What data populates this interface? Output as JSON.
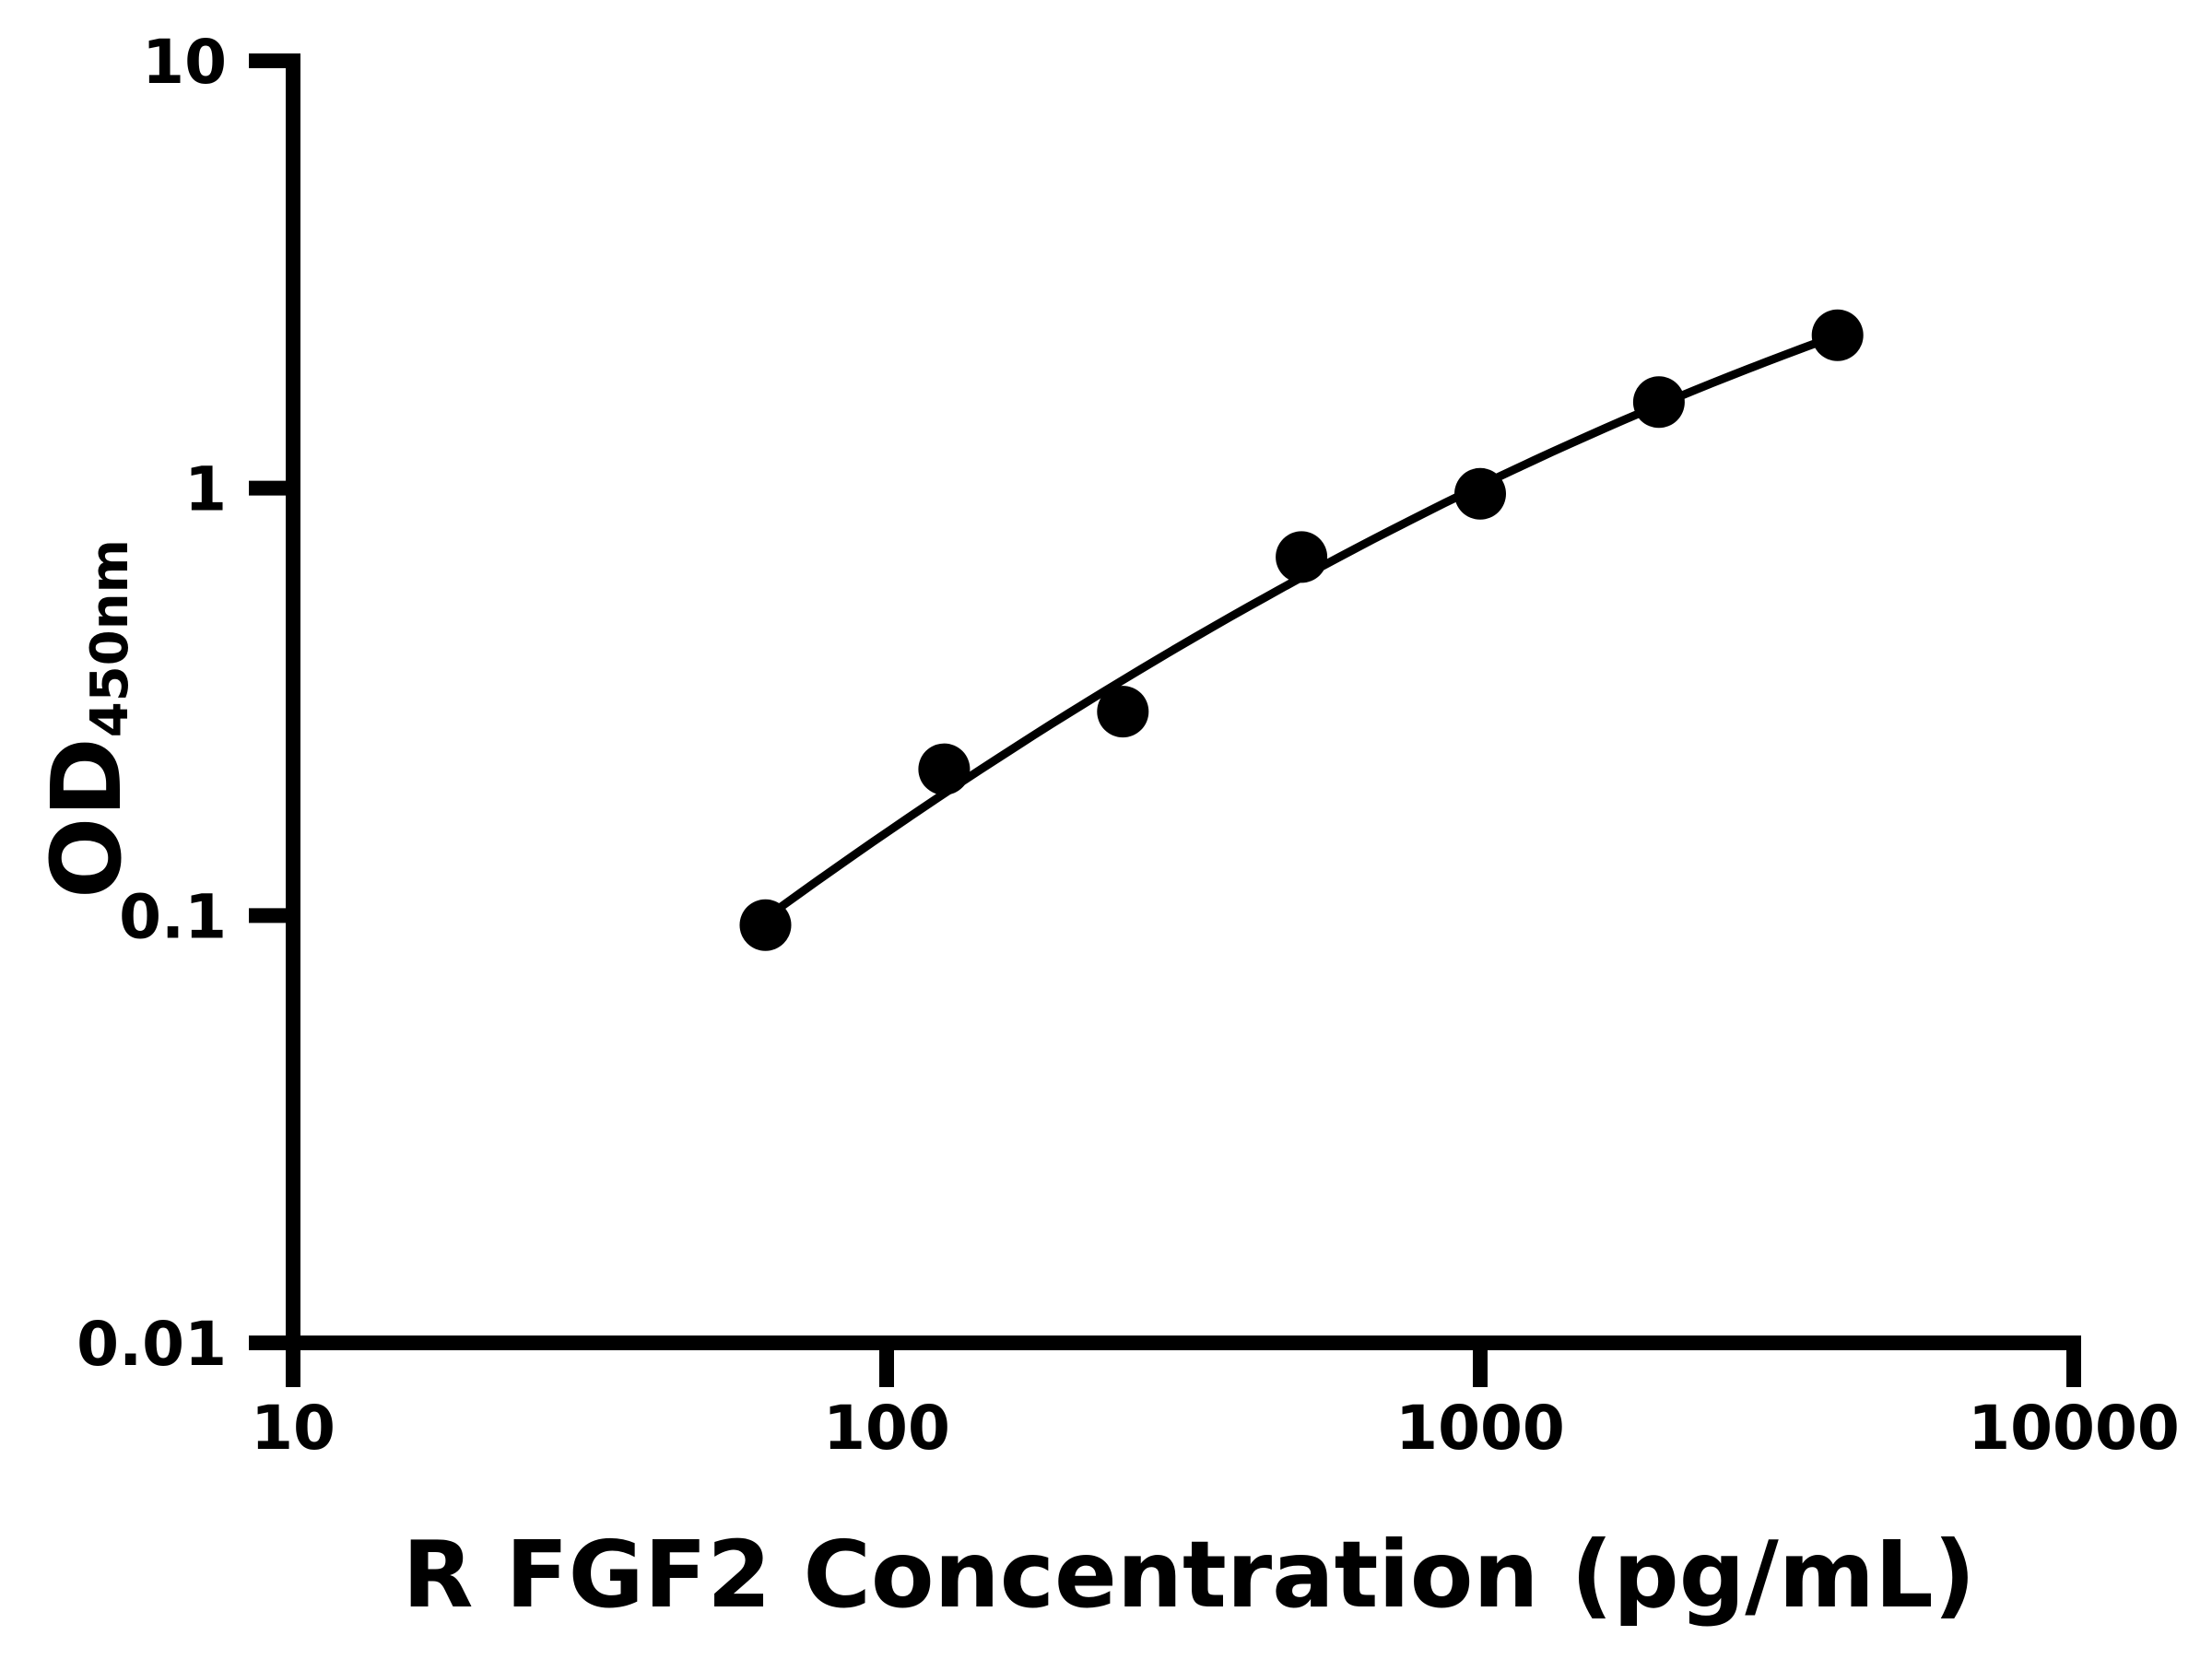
{
  "chart_data": {
    "type": "scatter",
    "subtype": "standard-curve-with-fit-line",
    "title": "",
    "xlabel": "R FGF2 Concentration (pg/mL)",
    "ylabel": "OD450nm",
    "ylabel_main": "OD",
    "ylabel_sub": "450nm",
    "x": [
      62.5,
      125,
      250,
      500,
      1000,
      2000,
      4000
    ],
    "y": [
      0.095,
      0.22,
      0.3,
      0.69,
      0.97,
      1.59,
      2.28
    ],
    "x_scale": "log",
    "y_scale": "log",
    "xlim": [
      10,
      10000
    ],
    "ylim": [
      0.01,
      10
    ],
    "x_ticks": [
      10,
      100,
      1000,
      10000
    ],
    "x_tick_labels": [
      "10",
      "100",
      "1000",
      "10000"
    ],
    "y_ticks": [
      10,
      1,
      0.1,
      0.01
    ],
    "y_tick_labels": [
      "10",
      "1",
      "0.1",
      "0.01"
    ],
    "grid": false,
    "legend": null,
    "marker_color": "#000000",
    "line_color": "#000000",
    "axis_color": "#000000",
    "background_color": "#ffffff",
    "trend_curve": {
      "form": "log10(y) = a + b*t + c*t^2, t = log10(x) - u0",
      "u0": 2.699,
      "a": -0.2087,
      "b": 0.755,
      "c": -0.1416,
      "x_start": 62.5,
      "x_end": 4000
    }
  }
}
